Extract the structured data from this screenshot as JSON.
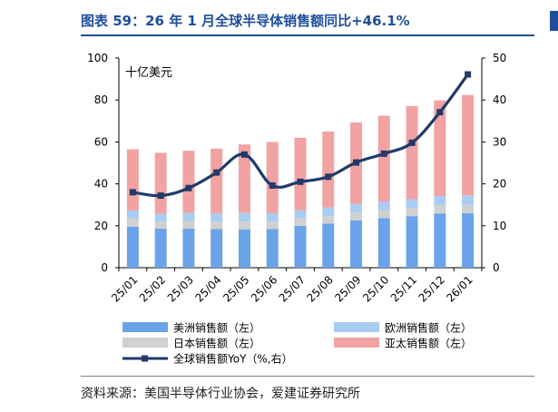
{
  "title": "图表 59：26 年 1 月全球半导体销售额同比+46.1%",
  "source": "资料来源：美国半导体行业协会，爱建证券研究所",
  "chart_data": {
    "type": "bar",
    "stacked": true,
    "unit_label": "十亿美元",
    "categories": [
      "25/01",
      "25/02",
      "25/03",
      "25/04",
      "25/05",
      "25/06",
      "25/07",
      "25/08",
      "25/09",
      "25/10",
      "25/11",
      "25/12",
      "26/01"
    ],
    "y_left": {
      "min": 0,
      "max": 100,
      "ticks": [
        "0",
        "20",
        "40",
        "60",
        "80",
        "100"
      ]
    },
    "y_right": {
      "min": 0,
      "max": 50,
      "ticks": [
        "0",
        "10",
        "20",
        "30",
        "40",
        "50"
      ]
    },
    "series": [
      {
        "name": "美洲销售额（左）",
        "axis": "left",
        "color": "#6aa3e8",
        "values": [
          19.6,
          18.6,
          18.6,
          18.4,
          18.3,
          18.4,
          20.0,
          21.0,
          22.5,
          23.6,
          24.6,
          25.9,
          26.0
        ]
      },
      {
        "name": "日本销售额（左）",
        "axis": "left",
        "color": "#d0d0d0",
        "values": [
          4.0,
          3.4,
          3.7,
          3.6,
          3.7,
          3.6,
          3.5,
          3.6,
          3.8,
          3.8,
          3.8,
          3.9,
          4.0
        ]
      },
      {
        "name": "欧洲销售额（左）",
        "axis": "left",
        "color": "#a9cdf2",
        "values": [
          3.7,
          3.8,
          3.9,
          4.0,
          4.1,
          4.0,
          4.0,
          4.1,
          4.1,
          4.2,
          4.3,
          4.4,
          4.5
        ]
      },
      {
        "name": "亚太销售额（左）",
        "axis": "left",
        "color": "#f2a2a2",
        "values": [
          29.2,
          29.0,
          29.6,
          30.8,
          32.7,
          34.0,
          34.5,
          36.3,
          38.9,
          40.9,
          44.4,
          45.6,
          47.9
        ]
      },
      {
        "name": "全球销售额YoY（%,右）",
        "axis": "right",
        "type": "line",
        "color": "#1f3a6b",
        "values": [
          18.0,
          17.2,
          19.0,
          22.7,
          27.0,
          19.6,
          20.5,
          21.7,
          25.1,
          27.2,
          29.8,
          37.1,
          46.1
        ]
      }
    ],
    "legend": [
      {
        "name": "美洲销售额（左）",
        "swatch": "#6aa3e8",
        "kind": "box"
      },
      {
        "name": "欧洲销售额（左）",
        "swatch": "#a9cdf2",
        "kind": "box"
      },
      {
        "name": "日本销售额（左）",
        "swatch": "#d0d0d0",
        "kind": "box"
      },
      {
        "name": "亚太销售额（左）",
        "swatch": "#f2a2a2",
        "kind": "box"
      },
      {
        "name": "全球销售额YoY（%,右）",
        "swatch": "#1f3a6b",
        "kind": "line"
      }
    ],
    "grid": false,
    "legend_position": "bottom"
  }
}
